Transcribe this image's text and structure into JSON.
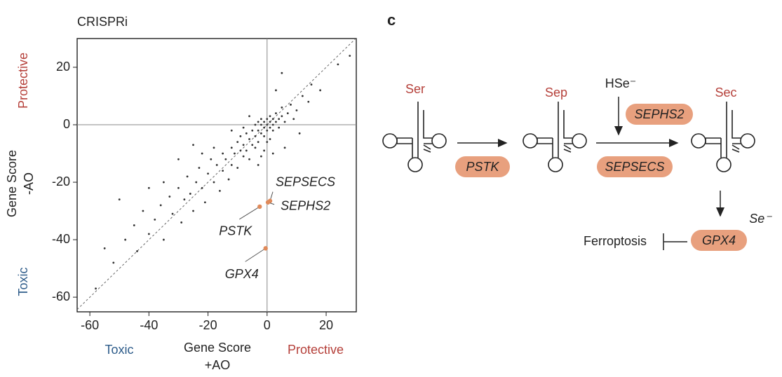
{
  "chart_data": {
    "type": "scatter",
    "title": "CRISPRi",
    "x_label": [
      "Gene Score",
      "+AO"
    ],
    "y_label": [
      "Gene Score",
      "-AO"
    ],
    "x_low_label": "Toxic",
    "x_high_label": "Protective",
    "y_low_label": "Toxic",
    "y_high_label": "Protective",
    "xlim": [
      -64.3,
      30.2
    ],
    "ylim": [
      -65.1,
      30
    ],
    "xticks": [
      -60,
      -40,
      -20,
      0,
      20
    ],
    "yticks": [
      -60,
      -40,
      -20,
      0,
      20
    ],
    "series": [
      {
        "color": "#333333",
        "x": [
          -58,
          -55,
          -52,
          -50,
          -48,
          -45,
          -44,
          -42,
          -40,
          -38,
          -36,
          -35,
          -33,
          -32,
          -30,
          -29,
          -28,
          -27,
          -26,
          -25,
          -24,
          -23,
          -22,
          -21,
          -20,
          -19,
          -18,
          -17,
          -16,
          -15,
          -15,
          -14,
          -13,
          -12,
          -12,
          -11,
          -10,
          -10,
          -9,
          -9,
          -8,
          -8,
          -7,
          -7,
          -6,
          -6,
          -5,
          -5,
          -4,
          -4,
          -3,
          -3,
          -3,
          -2,
          -2,
          -2,
          -1,
          -1,
          -1,
          0,
          0,
          0,
          1,
          1,
          1,
          2,
          2,
          2,
          3,
          3,
          4,
          4,
          5,
          5,
          6,
          7,
          8,
          10,
          12,
          14,
          5,
          3,
          15,
          18,
          24,
          28,
          -1,
          -2,
          0,
          1,
          -4,
          -6,
          -8,
          -12,
          -18,
          -22,
          -30,
          -25,
          -35,
          -40,
          6,
          2,
          -3,
          9,
          11
        ],
        "values": [
          -57,
          -43,
          -48,
          -26,
          -40,
          -35,
          -44,
          -30,
          -38,
          -33,
          -28,
          -40,
          -25,
          -31,
          -22,
          -34,
          -26,
          -18,
          -24,
          -30,
          -20,
          -15,
          -22,
          -27,
          -17,
          -12,
          -20,
          -14,
          -23,
          -10,
          -16,
          -12,
          -19,
          -8,
          -14,
          -10,
          -6,
          -15,
          -9,
          -4,
          -11,
          -7,
          -3,
          -9,
          -5,
          -12,
          -2,
          -7,
          -4,
          0,
          -6,
          -2,
          1,
          -3,
          0,
          2,
          -1,
          -4,
          1,
          0,
          -2,
          2,
          1,
          -1,
          3,
          0,
          2,
          -2,
          1,
          4,
          2,
          -1,
          3,
          6,
          1,
          4,
          7,
          5,
          10,
          8,
          18,
          12,
          14,
          12,
          21,
          24,
          -9,
          -11,
          -6,
          -5,
          -8,
          3,
          -1,
          -2,
          -8,
          -10,
          -12,
          -7,
          -20,
          -22,
          -8,
          -10,
          -14,
          2,
          -3
        ]
      },
      {
        "color": "#e08a5a",
        "x": [
          1,
          0.3,
          -2.5,
          -0.5
        ],
        "values": [
          -26.5,
          -27,
          -28.5,
          -43
        ],
        "labels": [
          "SEPSECS",
          "SEPHS2",
          "PSTK",
          "GPX4"
        ]
      }
    ]
  },
  "diagram": {
    "panel": "c",
    "trna": [
      "Ser",
      "Sep",
      "Sec"
    ],
    "donor": "HSe⁻",
    "enzymes": [
      "PSTK",
      "SEPHS2",
      "SEPSECS",
      "GPX4"
    ],
    "gpx4_cofactor": "Se⁻",
    "outcome": "Ferroptosis"
  }
}
